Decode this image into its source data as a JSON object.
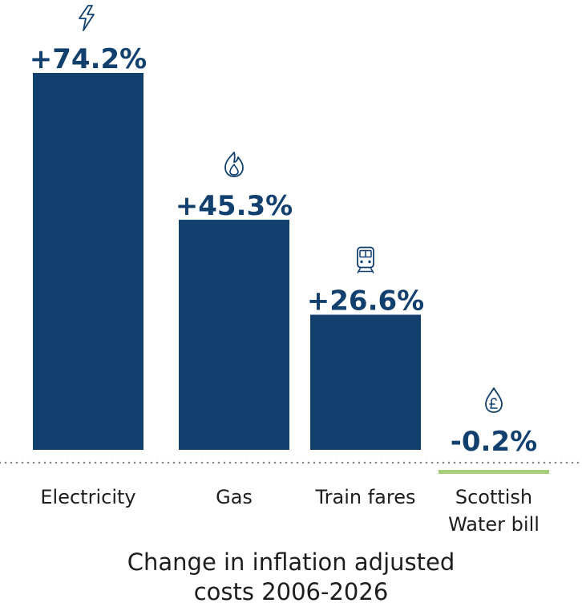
{
  "chart_data": {
    "type": "bar",
    "categories": [
      "Electricity",
      "Gas",
      "Train fares",
      "Scottish Water bill"
    ],
    "category_lines": [
      [
        "Electricity"
      ],
      [
        "Gas"
      ],
      [
        "Train fares"
      ],
      [
        "Scottish",
        "Water bill"
      ]
    ],
    "values": [
      74.2,
      45.3,
      26.6,
      -0.2
    ],
    "value_labels": [
      "+74.2%",
      "+45.3%",
      "+26.6%",
      "-0.2%"
    ],
    "icons": [
      "lightning-icon",
      "flame-icon",
      "train-icon",
      "water-drop-pound-icon"
    ],
    "bar_colors": [
      "#11406f",
      "#11406f",
      "#11406f",
      "#a7cf7a"
    ],
    "label_color": "#11406f",
    "baseline": "dotted",
    "ylim": [
      -0.2,
      74.2
    ]
  },
  "caption": {
    "line1": "Change in inflation adjusted",
    "line2": "costs 2006-2026"
  }
}
